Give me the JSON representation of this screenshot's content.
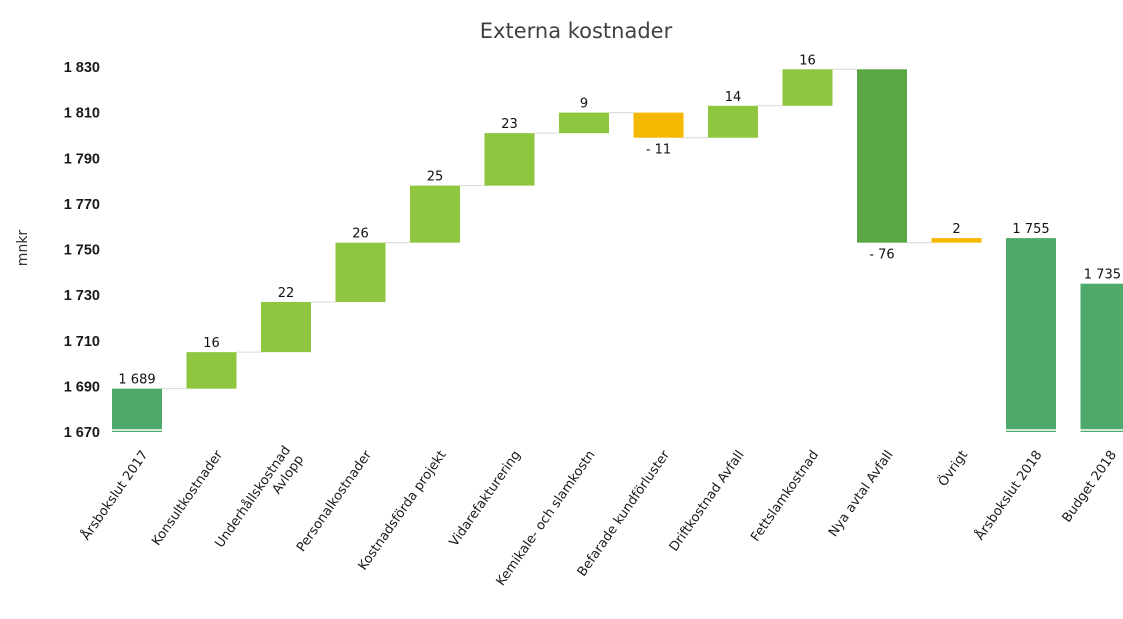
{
  "chart_data": {
    "type": "waterfall",
    "title": "Externa kostnader",
    "ylabel": "mnkr",
    "ylim": [
      1670,
      1830
    ],
    "yticks": [
      1670,
      1690,
      1710,
      1730,
      1750,
      1770,
      1790,
      1810,
      1830
    ],
    "ytick_labels": [
      "1 670",
      "1 690",
      "1 710",
      "1 730",
      "1 750",
      "1 770",
      "1 790",
      "1 810",
      "1 830"
    ],
    "colors": {
      "total": "#4daa6b",
      "increase": "#8ec63f",
      "decrease": "#f5b800",
      "major": "#5aa544",
      "connector": "#d9d9d9"
    },
    "steps": [
      {
        "label": [
          "Årsbokslut 2017"
        ],
        "kind": "total",
        "value": 1689,
        "display": "1 689"
      },
      {
        "label": [
          "Konsultkostnader"
        ],
        "kind": "increase",
        "value": 16,
        "display": "16"
      },
      {
        "label": [
          "Underhållskostnad",
          "Avlopp"
        ],
        "kind": "increase",
        "value": 22,
        "display": "22"
      },
      {
        "label": [
          "Personalkostnader"
        ],
        "kind": "increase",
        "value": 26,
        "display": "26"
      },
      {
        "label": [
          "Kostnadsförda projekt"
        ],
        "kind": "increase",
        "value": 25,
        "display": "25"
      },
      {
        "label": [
          "Vidarefakturering"
        ],
        "kind": "increase",
        "value": 23,
        "display": "23"
      },
      {
        "label": [
          "Kemikale- och slamkostn"
        ],
        "kind": "increase",
        "value": 9,
        "display": "9"
      },
      {
        "label": [
          "Befarade kundförluster"
        ],
        "kind": "decrease",
        "value": -11,
        "display": "- 11"
      },
      {
        "label": [
          "Driftkostnad Avfall"
        ],
        "kind": "increase",
        "value": 14,
        "display": "14"
      },
      {
        "label": [
          "Fettslamkostnad"
        ],
        "kind": "increase",
        "value": 16,
        "display": "16"
      },
      {
        "label": [
          "Nya avtal Avfall"
        ],
        "kind": "major",
        "value": -76,
        "display": "- 76"
      },
      {
        "label": [
          "Övrigt"
        ],
        "kind": "decrease",
        "value": 2,
        "display": "2"
      },
      {
        "label": [
          "Årsbokslut 2018"
        ],
        "kind": "total",
        "value": 1755,
        "display": "1 755"
      },
      {
        "label": [
          "Budget 2018"
        ],
        "kind": "total",
        "value": 1735,
        "display": "1 735"
      }
    ]
  }
}
